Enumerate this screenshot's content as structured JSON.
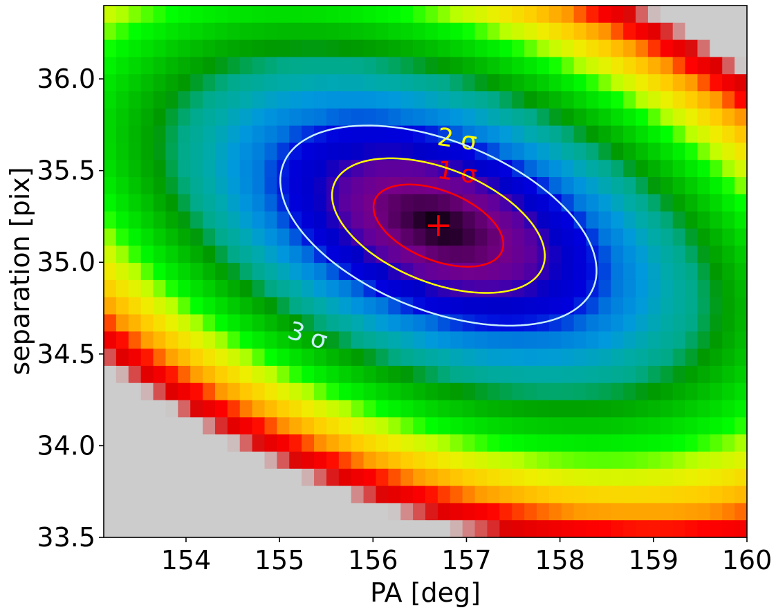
{
  "chart_data": {
    "type": "heatmap",
    "title": "",
    "xlabel": "PA [deg]",
    "ylabel": "separation [pix]",
    "xlim": [
      153.12,
      160.0
    ],
    "ylim": [
      33.5,
      36.4
    ],
    "xticks": [
      "154",
      "155",
      "156",
      "157",
      "158",
      "159",
      "160"
    ],
    "yticks": [
      "33.5",
      "34.0",
      "34.5",
      "35.0",
      "35.5",
      "36.0"
    ],
    "grid": false,
    "colormap": "nipy_spectral",
    "best_fit": {
      "x": 156.7,
      "y": 35.2,
      "marker": "+",
      "color": "#ff0000"
    },
    "surface": {
      "center_x": 156.7,
      "center_y": 35.2,
      "description_ref": "chi-square surface, minimum at best_fit"
    },
    "contours": [
      {
        "label": "1 σ",
        "color": "#ff0000",
        "label_x": 156.9,
        "label_y": 35.49
      },
      {
        "label": "2 σ",
        "color": "#ffff00",
        "label_x": 156.9,
        "label_y": 35.67
      },
      {
        "label": "3 σ",
        "color": "#c8f0ff",
        "label_x": 155.3,
        "label_y": 34.6
      }
    ]
  }
}
